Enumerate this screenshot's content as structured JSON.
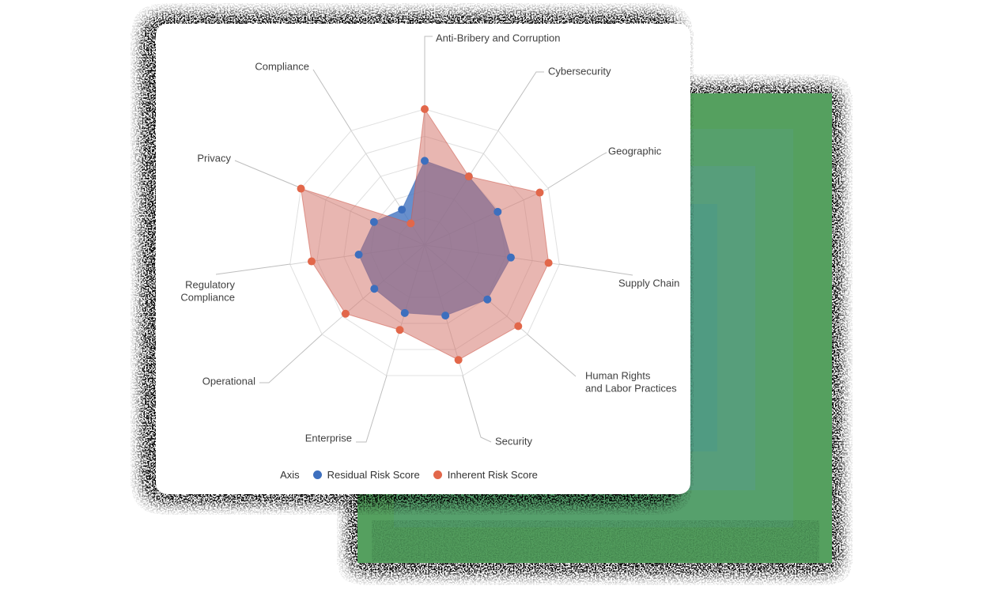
{
  "card": {
    "background": "#ffffff"
  },
  "green_panel": {
    "layer_colors": [
      "#55a05f",
      "#56a06c",
      "#579e7b",
      "#509b82"
    ]
  },
  "legend": {
    "title": "Axis",
    "items": [
      {
        "label": "Residual Risk Score",
        "color": "#3d6fbe"
      },
      {
        "label": "Inherent Risk Score",
        "color": "#e2674a"
      }
    ]
  },
  "colors": {
    "residual_point": "#3d6fbe",
    "inherent_point": "#e2674a",
    "residual_fill": "rgba(61,111,190,0.78)",
    "inherent_fill": "rgba(210,110,100,0.5)",
    "residual_stroke": "rgba(61,111,190,0.65)",
    "inherent_stroke": "rgba(205,90,75,0.55)",
    "ring_line": "#e0e0e0",
    "spoke_line": "#d3d3d3",
    "leader_line": "#bebebe",
    "label_text": "#404040"
  },
  "chart_data": {
    "type": "radar",
    "grid_shape": "polygon",
    "rings": 5,
    "rmax": 10,
    "start_axis": "top",
    "direction": "clockwise",
    "legend_position": "bottom",
    "categories": [
      "Anti-Bribery and Corruption",
      "Cybersecurity",
      "Geographic",
      "Supply Chain",
      "Human Rights and Labor Practices",
      "Security",
      "Enterprise",
      "Operational",
      "Regulatory Compliance",
      "Privacy",
      "Compliance"
    ],
    "series": [
      {
        "name": "Residual Risk Score",
        "color": "#3d6fbe",
        "values": [
          6.2,
          6,
          5.9,
          6.4,
          6.1,
          5.4,
          5.2,
          4.9,
          4.9,
          4.1,
          3.1
        ]
      },
      {
        "name": "Inherent Risk Score",
        "color": "#e2674a",
        "values": [
          10,
          6,
          9.3,
          9.2,
          9.1,
          8.8,
          6.5,
          7.7,
          8.4,
          10,
          1.9
        ]
      }
    ]
  }
}
